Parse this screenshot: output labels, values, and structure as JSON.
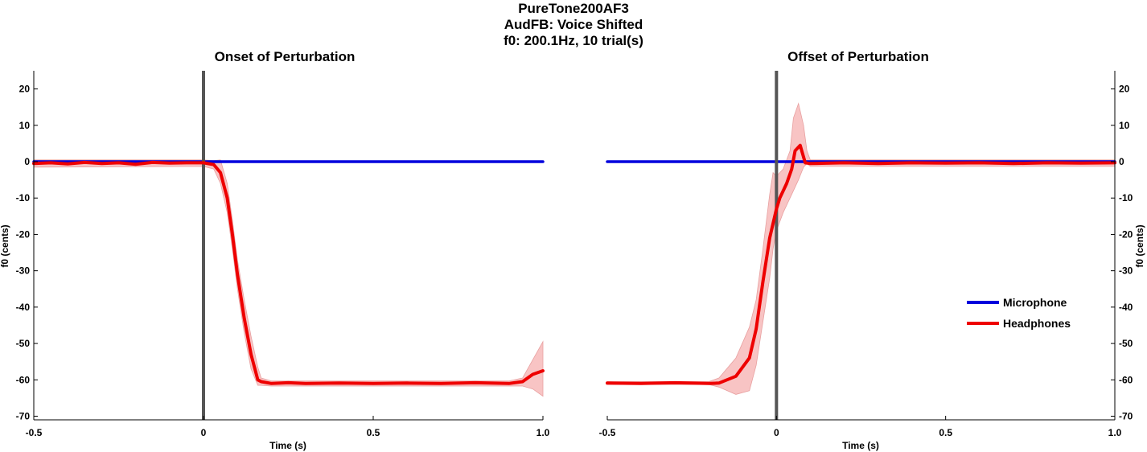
{
  "figure": {
    "title_lines": [
      "PureTone200AF3",
      "AudFB: Voice Shifted",
      "f0: 200.1Hz, 10 trial(s)"
    ]
  },
  "colors": {
    "microphone": "#0000dd",
    "headphones": "#ee0000",
    "headphones_band": "#f8c4c4",
    "marker": "#555555"
  },
  "legend": {
    "placement": "right of offset panel, lower middle",
    "items": [
      {
        "label": "Microphone",
        "color": "#0000dd"
      },
      {
        "label": "Headphones",
        "color": "#ee0000"
      }
    ]
  },
  "chart_data": [
    {
      "type": "line",
      "title": "Onset of Perturbation",
      "xlabel": "Time (s)",
      "ylabel": "f0 (cents)",
      "xlim": [
        -0.5,
        1.0
      ],
      "ylim": [
        -71,
        25
      ],
      "xticks": [
        -0.5,
        0,
        0.5,
        1.0
      ],
      "xtick_labels": [
        "-0.5",
        "0",
        "0.5",
        "1.0"
      ],
      "yticks": [
        20,
        10,
        0,
        -10,
        -20,
        -30,
        -40,
        -50,
        -60,
        -70
      ],
      "ytick_labels": [
        "20",
        "10",
        "0",
        "-10",
        "-20",
        "-30",
        "-40",
        "-50",
        "-60",
        "-70"
      ],
      "y_axis_side": "left",
      "grid": false,
      "event_line_x": 0,
      "series": [
        {
          "name": "Microphone",
          "x": [
            -0.5,
            1.0
          ],
          "values": [
            0,
            0
          ]
        },
        {
          "name": "Headphones",
          "x": [
            -0.5,
            -0.45,
            -0.4,
            -0.35,
            -0.3,
            -0.25,
            -0.2,
            -0.15,
            -0.1,
            -0.05,
            0,
            0.03,
            0.05,
            0.07,
            0.085,
            0.1,
            0.12,
            0.14,
            0.16,
            0.17,
            0.2,
            0.25,
            0.3,
            0.4,
            0.5,
            0.6,
            0.7,
            0.8,
            0.9,
            0.94,
            0.97,
            1.0
          ],
          "values": [
            -0.5,
            -0.3,
            -0.6,
            -0.2,
            -0.5,
            -0.3,
            -0.7,
            -0.2,
            -0.4,
            -0.3,
            -0.3,
            -0.8,
            -3,
            -10,
            -20,
            -31,
            -43,
            -53,
            -60,
            -60.5,
            -61,
            -60.8,
            -61,
            -60.9,
            -61,
            -60.9,
            -61,
            -60.8,
            -61,
            -60.5,
            -58.5,
            -57.5
          ]
        }
      ],
      "band": {
        "x": [
          -0.5,
          0,
          0.03,
          0.05,
          0.07,
          0.085,
          0.1,
          0.12,
          0.14,
          0.16,
          0.17,
          0.2,
          0.9,
          0.94,
          0.97,
          1.0
        ],
        "upper": [
          0.5,
          0.5,
          0.3,
          0.5,
          -6,
          -16,
          -27,
          -38,
          -48,
          -56.5,
          -59.5,
          -60.3,
          -60.3,
          -59.5,
          -54.5,
          -49.5
        ],
        "lower": [
          -1.5,
          -1.3,
          -2,
          -6,
          -14,
          -24,
          -35,
          -47,
          -57,
          -61.5,
          -61.5,
          -61.7,
          -61.7,
          -61.7,
          -62.5,
          -64.5
        ]
      }
    },
    {
      "type": "line",
      "title": "Offset of Perturbation",
      "xlabel": "Time (s)",
      "ylabel": "f0 (cents)",
      "xlim": [
        -0.5,
        1.0
      ],
      "ylim": [
        -71,
        25
      ],
      "xticks": [
        -0.5,
        0,
        0.5,
        1.0
      ],
      "xtick_labels": [
        "-0.5",
        "0",
        "0.5",
        "1.0"
      ],
      "yticks": [
        20,
        10,
        0,
        -10,
        -20,
        -30,
        -40,
        -50,
        -60,
        -70
      ],
      "ytick_labels": [
        "20",
        "10",
        "0",
        "-10",
        "-20",
        "-30",
        "-40",
        "-50",
        "-60",
        "-70"
      ],
      "y_axis_side": "right",
      "grid": false,
      "event_line_x": 0,
      "series": [
        {
          "name": "Microphone",
          "x": [
            -0.5,
            1.0
          ],
          "values": [
            0,
            0
          ]
        },
        {
          "name": "Headphones",
          "x": [
            -0.5,
            -0.4,
            -0.3,
            -0.2,
            -0.17,
            -0.12,
            -0.08,
            -0.06,
            -0.04,
            -0.02,
            0,
            0.01,
            0.03,
            0.045,
            0.055,
            0.07,
            0.085,
            0.1,
            0.2,
            0.3,
            0.4,
            0.5,
            0.6,
            0.7,
            0.8,
            0.9,
            1.0
          ],
          "values": [
            -60.9,
            -61,
            -60.8,
            -61,
            -60.9,
            -59,
            -54,
            -46,
            -33,
            -21,
            -13,
            -10,
            -6,
            -2,
            3,
            4.5,
            -0.3,
            -0.5,
            -0.3,
            -0.5,
            -0.3,
            -0.4,
            -0.3,
            -0.5,
            -0.3,
            -0.4,
            -0.3
          ]
        }
      ],
      "band": {
        "x": [
          -0.5,
          -0.2,
          -0.17,
          -0.12,
          -0.08,
          -0.06,
          -0.04,
          -0.02,
          -0.01,
          0,
          0.02,
          0.04,
          0.05,
          0.065,
          0.08,
          0.09,
          0.1,
          1.0
        ],
        "upper": [
          -60.5,
          -60.5,
          -59.5,
          -54,
          -45.5,
          -38,
          -24,
          -9,
          -3,
          -4,
          -2,
          3,
          12,
          16,
          10,
          3,
          0.5,
          0.5
        ],
        "lower": [
          -61.3,
          -61.3,
          -62,
          -64,
          -63,
          -56,
          -44,
          -32,
          -24,
          -19,
          -14,
          -10,
          -8,
          -5,
          -1.5,
          -0.5,
          -1.3,
          -1.3
        ]
      }
    }
  ]
}
